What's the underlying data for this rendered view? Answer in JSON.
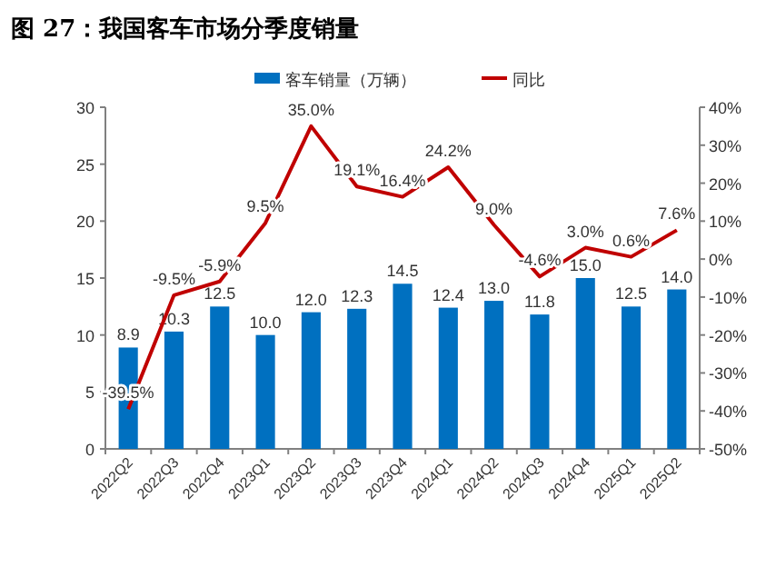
{
  "chart_data": {
    "type": "bar",
    "title": "图 27：我国客车市场分季度销量",
    "categories": [
      "2022Q2",
      "2022Q3",
      "2022Q4",
      "2023Q1",
      "2023Q2",
      "2023Q3",
      "2023Q4",
      "2024Q1",
      "2024Q2",
      "2024Q3",
      "2024Q4",
      "2025Q1",
      "2025Q2"
    ],
    "series": [
      {
        "name": "客车销量（万辆）",
        "color": "#0070c0",
        "values": [
          8.9,
          10.3,
          12.5,
          10.0,
          12.0,
          12.3,
          14.5,
          12.4,
          13.0,
          11.8,
          15.0,
          12.5,
          14.0
        ],
        "value_labels": [
          "8.9",
          "10.3",
          "12.5",
          "10.0",
          "12.0",
          "12.3",
          "14.5",
          "12.4",
          "13.0",
          "11.8",
          "15.0",
          "12.5",
          "14.0"
        ]
      },
      {
        "name": "同比",
        "type": "line",
        "axis": "y2",
        "color": "#c00000",
        "values": [
          -39.5,
          -9.5,
          -5.9,
          9.5,
          35.0,
          19.1,
          16.4,
          24.2,
          9.0,
          -4.6,
          3.0,
          0.6,
          7.6
        ],
        "value_labels": [
          "-39.5%",
          "-9.5%",
          "-5.9%",
          "9.5%",
          "35.0%",
          "19.1%",
          "16.4%",
          "24.2%",
          "9.0%",
          "-4.6%",
          "3.0%",
          "0.6%",
          "7.6%"
        ]
      }
    ],
    "ylim": [
      0,
      30
    ],
    "yticks": [
      0,
      5,
      10,
      15,
      20,
      25,
      30
    ],
    "y2lim": [
      -50,
      40
    ],
    "y2ticks": [
      {
        "value": -50,
        "label": "-50%"
      },
      {
        "value": -40,
        "label": "-40%"
      },
      {
        "value": -30,
        "label": "-30%"
      },
      {
        "value": -20,
        "label": "-20%"
      },
      {
        "value": -10,
        "label": "-10%"
      },
      {
        "value": 0,
        "label": "0%"
      },
      {
        "value": 10,
        "label": "10%"
      },
      {
        "value": 20,
        "label": "20%"
      },
      {
        "value": 30,
        "label": "30%"
      },
      {
        "value": 40,
        "label": "40%"
      }
    ],
    "grid": false,
    "legend": "top",
    "marker": "none"
  }
}
